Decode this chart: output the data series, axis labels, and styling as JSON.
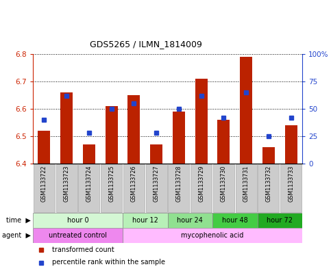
{
  "title": "GDS5265 / ILMN_1814009",
  "samples": [
    "GSM1133722",
    "GSM1133723",
    "GSM1133724",
    "GSM1133725",
    "GSM1133726",
    "GSM1133727",
    "GSM1133728",
    "GSM1133729",
    "GSM1133730",
    "GSM1133731",
    "GSM1133732",
    "GSM1133733"
  ],
  "red_values": [
    6.52,
    6.66,
    6.47,
    6.61,
    6.65,
    6.47,
    6.59,
    6.71,
    6.56,
    6.79,
    6.46,
    6.54
  ],
  "blue_percentiles": [
    40,
    62,
    28,
    50,
    55,
    28,
    50,
    62,
    42,
    65,
    25,
    42
  ],
  "ylim_left": [
    6.4,
    6.8
  ],
  "ylim_right": [
    0,
    100
  ],
  "yticks_left": [
    6.4,
    6.5,
    6.6,
    6.7,
    6.8
  ],
  "yticks_right": [
    0,
    25,
    50,
    75,
    100
  ],
  "ytick_labels_right": [
    "0",
    "25",
    "50",
    "75",
    "100%"
  ],
  "bar_color": "#bb2200",
  "dot_color": "#2244cc",
  "bar_bottom": 6.4,
  "time_groups": [
    {
      "label": "hour 0",
      "start": 0,
      "end": 4,
      "color": "#d4f7d4"
    },
    {
      "label": "hour 12",
      "start": 4,
      "end": 6,
      "color": "#b8f0b8"
    },
    {
      "label": "hour 24",
      "start": 6,
      "end": 8,
      "color": "#90e090"
    },
    {
      "label": "hour 48",
      "start": 8,
      "end": 10,
      "color": "#44cc44"
    },
    {
      "label": "hour 72",
      "start": 10,
      "end": 12,
      "color": "#22aa22"
    }
  ],
  "agent_groups": [
    {
      "label": "untreated control",
      "start": 0,
      "end": 4,
      "color": "#ee88ee"
    },
    {
      "label": "mycophenolic acid",
      "start": 4,
      "end": 12,
      "color": "#ffbbff"
    }
  ],
  "legend_items": [
    {
      "label": "transformed count",
      "color": "#bb2200"
    },
    {
      "label": "percentile rank within the sample",
      "color": "#2244cc"
    }
  ],
  "tick_color_left": "#cc2200",
  "tick_color_right": "#2244cc",
  "sample_box_color": "#cccccc",
  "sample_box_edge": "#aaaaaa"
}
